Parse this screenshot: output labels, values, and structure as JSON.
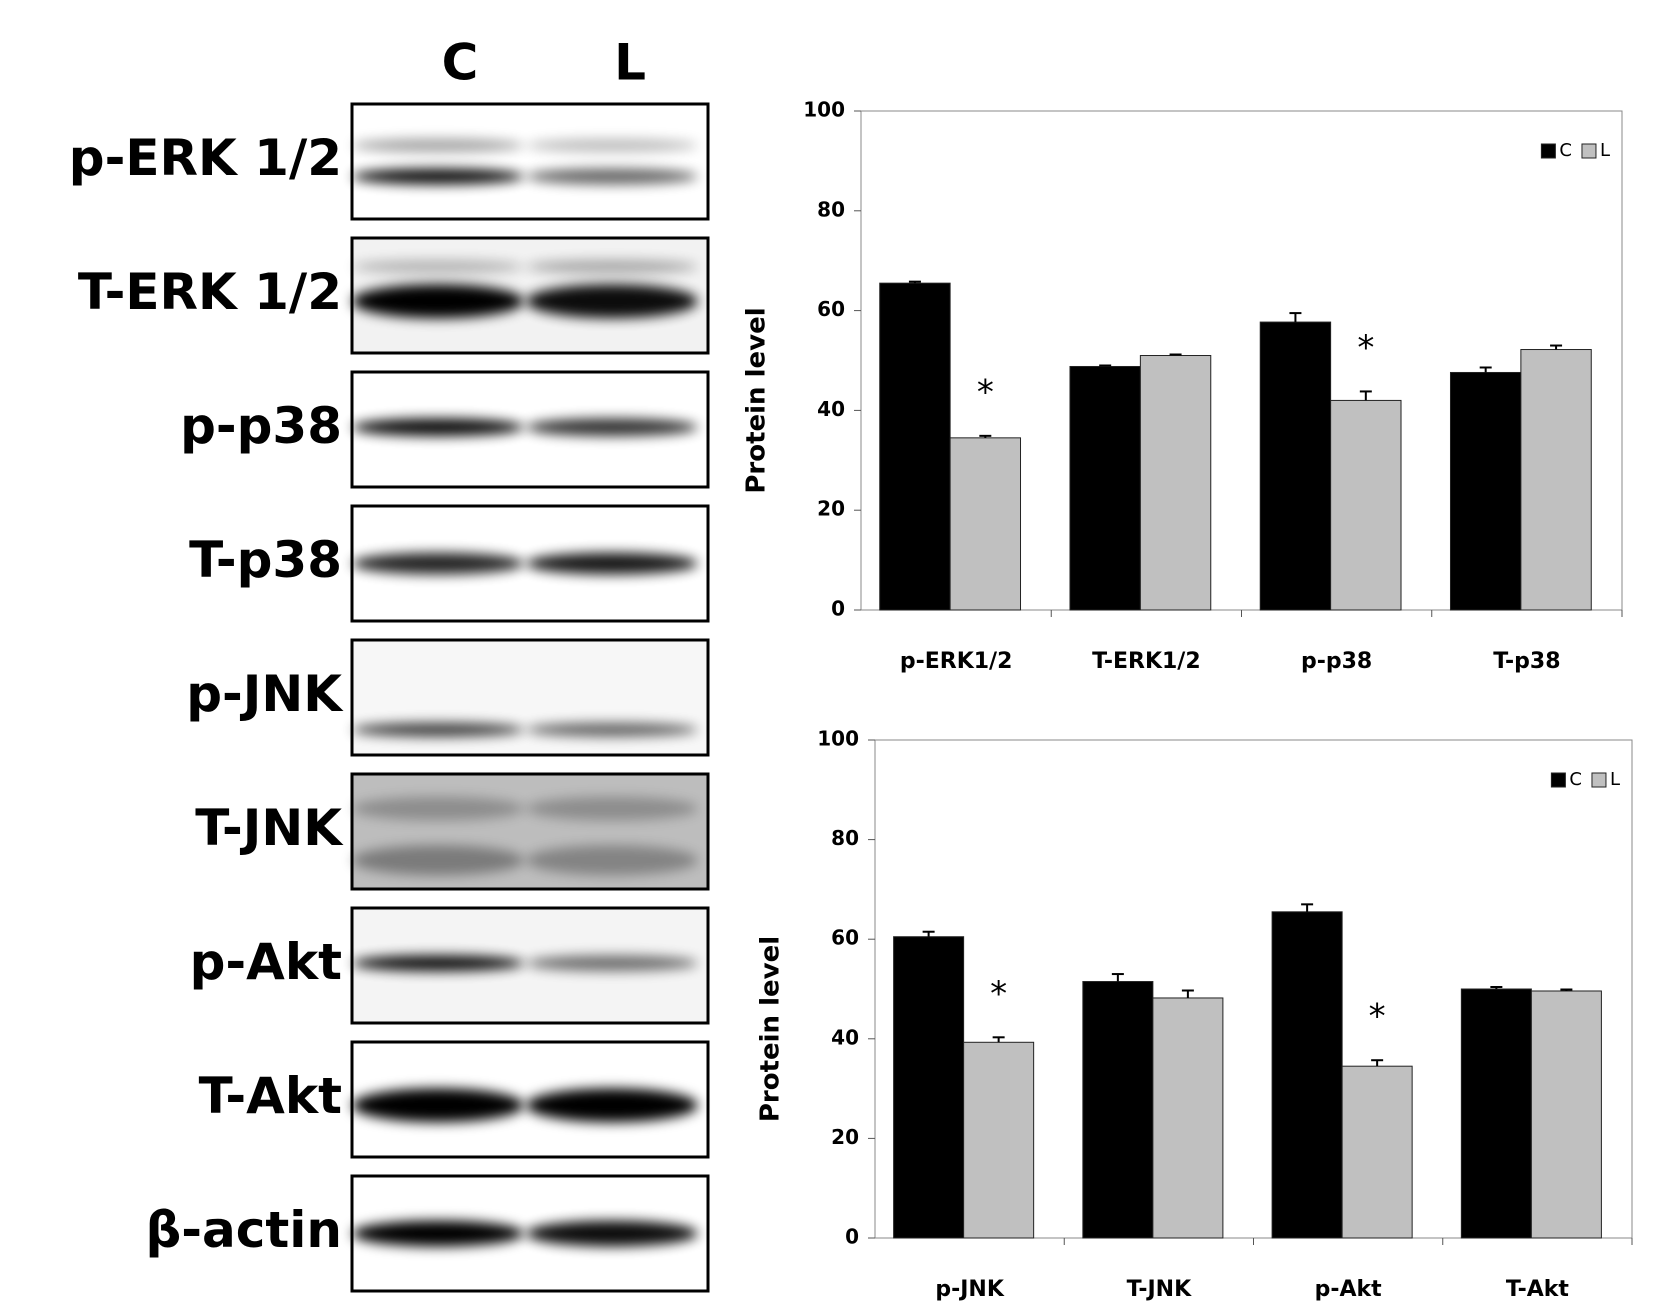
{
  "blot": {
    "lanes": [
      "C",
      "L"
    ],
    "rows": [
      "p-ERK 1/2",
      "T-ERK 1/2",
      "p-p38",
      "T-p38",
      "p-JNK",
      "T-JNK",
      "p-Akt",
      "T-Akt",
      "β-actin"
    ]
  },
  "chart_data": [
    {
      "type": "bar",
      "ylabel": "Protein level",
      "categories": [
        "p-ERK1/2",
        "T-ERK1/2",
        "p-p38",
        "T-p38"
      ],
      "series": [
        {
          "name": "C",
          "color": "#000000",
          "values": [
            65.5,
            48.8,
            57.7,
            47.6
          ],
          "errors": [
            0.3,
            0.2,
            1.8,
            1.0
          ]
        },
        {
          "name": "L",
          "color": "#c0c0c0",
          "values": [
            34.5,
            51.0,
            42.0,
            52.2
          ],
          "errors": [
            0.4,
            0.2,
            1.8,
            0.8
          ]
        }
      ],
      "annotations": [
        {
          "text": "*",
          "category": "p-ERK1/2",
          "series": "L"
        },
        {
          "text": "*",
          "category": "p-p38",
          "series": "L"
        }
      ],
      "ylim": [
        0,
        100
      ],
      "yticks": [
        0,
        20,
        40,
        60,
        80,
        100
      ],
      "legend": "top-right"
    },
    {
      "type": "bar",
      "ylabel": "Protein level",
      "categories": [
        "p-JNK",
        "T-JNK",
        "p-Akt",
        "T-Akt"
      ],
      "series": [
        {
          "name": "C",
          "color": "#000000",
          "values": [
            60.5,
            51.5,
            65.5,
            50.0
          ],
          "errors": [
            1.0,
            1.5,
            1.5,
            0.4
          ]
        },
        {
          "name": "L",
          "color": "#c0c0c0",
          "values": [
            39.3,
            48.2,
            34.5,
            49.6
          ],
          "errors": [
            1.0,
            1.5,
            1.2,
            0.3
          ]
        }
      ],
      "annotations": [
        {
          "text": "*",
          "category": "p-JNK",
          "series": "L"
        },
        {
          "text": "*",
          "category": "p-Akt",
          "series": "L"
        }
      ],
      "ylim": [
        0,
        100
      ],
      "yticks": [
        0,
        20,
        40,
        60,
        80,
        100
      ],
      "legend": "top-right"
    }
  ]
}
